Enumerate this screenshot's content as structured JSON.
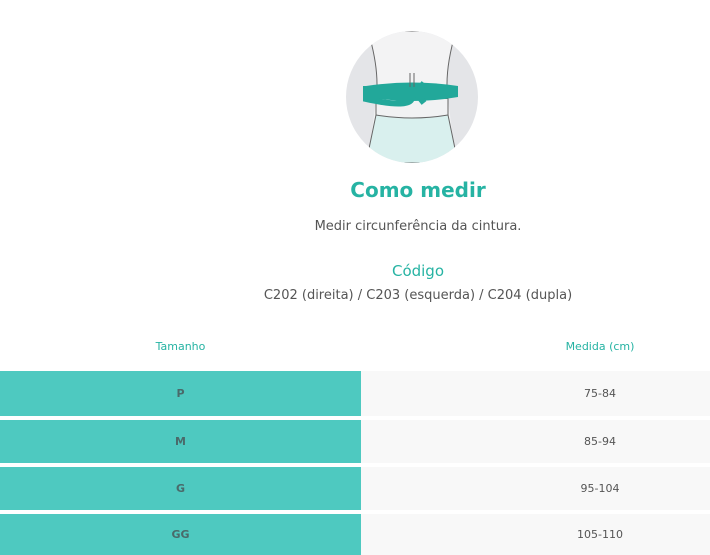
{
  "colors": {
    "accent": "#26b3a3",
    "size_cell": "#4ec9c0",
    "measure_cell": "#f8f8f8"
  },
  "illustration": {
    "icon": "waist-measure-illustration"
  },
  "heading": "Como medir",
  "instruction": "Medir circunferência da cintura.",
  "code_heading": "Código",
  "codes": "C202 (direita) / C203 (esquerda) / C204 (dupla)",
  "table": {
    "headers": [
      "Tamanho",
      "Medida (cm)"
    ],
    "rows": [
      {
        "size": "P",
        "measure": "75-84"
      },
      {
        "size": "M",
        "measure": "85-94"
      },
      {
        "size": "G",
        "measure": "95-104"
      },
      {
        "size": "GG",
        "measure": "105-110"
      }
    ]
  }
}
